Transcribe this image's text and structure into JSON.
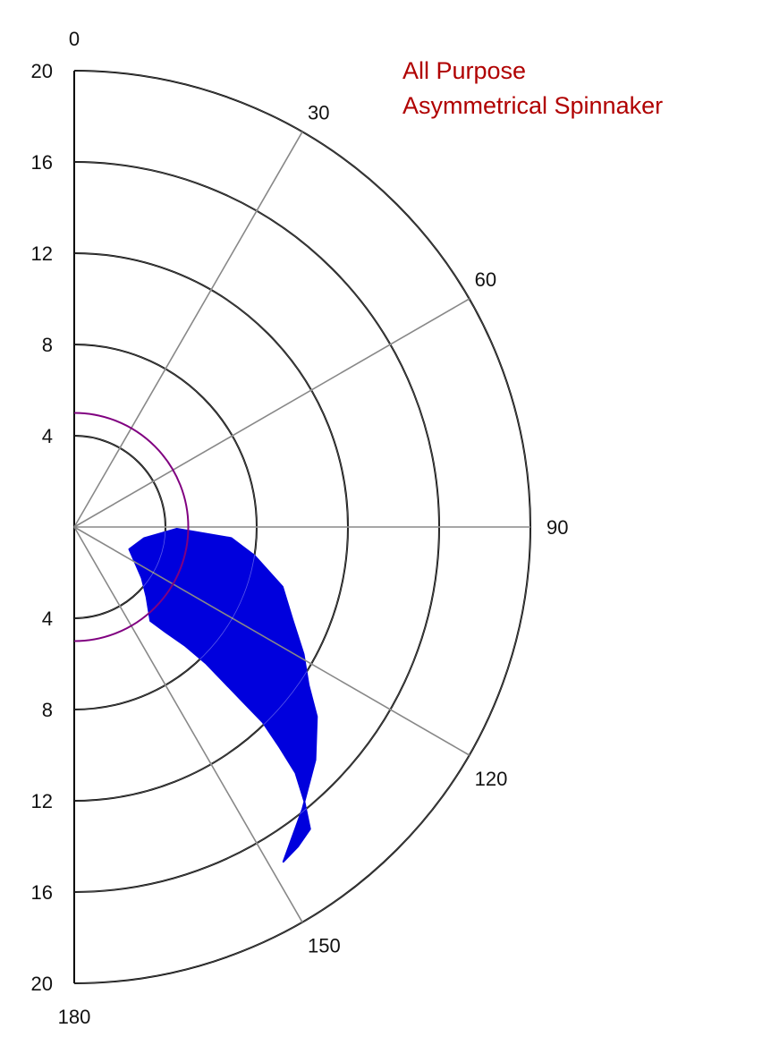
{
  "chart_data": {
    "type": "area",
    "coordinate_system": "polar-half",
    "title_lines": [
      "All Purpose",
      "Asymmetrical Spinnaker"
    ],
    "title_color": "#b00000",
    "radial_ticks": [
      4,
      8,
      12,
      16,
      20
    ],
    "radial_max": 20,
    "angle_ticks": [
      0,
      30,
      60,
      90,
      120,
      150,
      180
    ],
    "angle_spokes": [
      30,
      60,
      90,
      120,
      150
    ],
    "grid": true,
    "reference_circle": {
      "radius": 5,
      "color": "#800080"
    },
    "series": [
      {
        "color": "#0000dd",
        "points": [
          {
            "angle": 141,
            "r": 5.3
          },
          {
            "angle": 139,
            "r": 6.1
          },
          {
            "angle": 137,
            "r": 7.1
          },
          {
            "angle": 136,
            "r": 8.3
          },
          {
            "angle": 136,
            "r": 9.5
          },
          {
            "angle": 136,
            "r": 10.7
          },
          {
            "angle": 136,
            "r": 11.9
          },
          {
            "angle": 137,
            "r": 13.2
          },
          {
            "angle": 138,
            "r": 14.5
          },
          {
            "angle": 140,
            "r": 15.7
          },
          {
            "angle": 142,
            "r": 16.8
          },
          {
            "angle": 145,
            "r": 17.1
          },
          {
            "angle": 148,
            "r": 17.3
          },
          {
            "angle": 141,
            "r": 15.9
          },
          {
            "angle": 134,
            "r": 14.7
          },
          {
            "angle": 128,
            "r": 13.5
          },
          {
            "angle": 124,
            "r": 12.4
          },
          {
            "angle": 119,
            "r": 11.5
          },
          {
            "angle": 113,
            "r": 10.4
          },
          {
            "angle": 106,
            "r": 9.5
          },
          {
            "angle": 99,
            "r": 8.0
          },
          {
            "angle": 94,
            "r": 6.9
          },
          {
            "angle": 91,
            "r": 4.5
          },
          {
            "angle": 99,
            "r": 3.1
          },
          {
            "angle": 112,
            "r": 2.6
          },
          {
            "angle": 127,
            "r": 3.7
          },
          {
            "angle": 134,
            "r": 4.4
          }
        ]
      }
    ]
  }
}
